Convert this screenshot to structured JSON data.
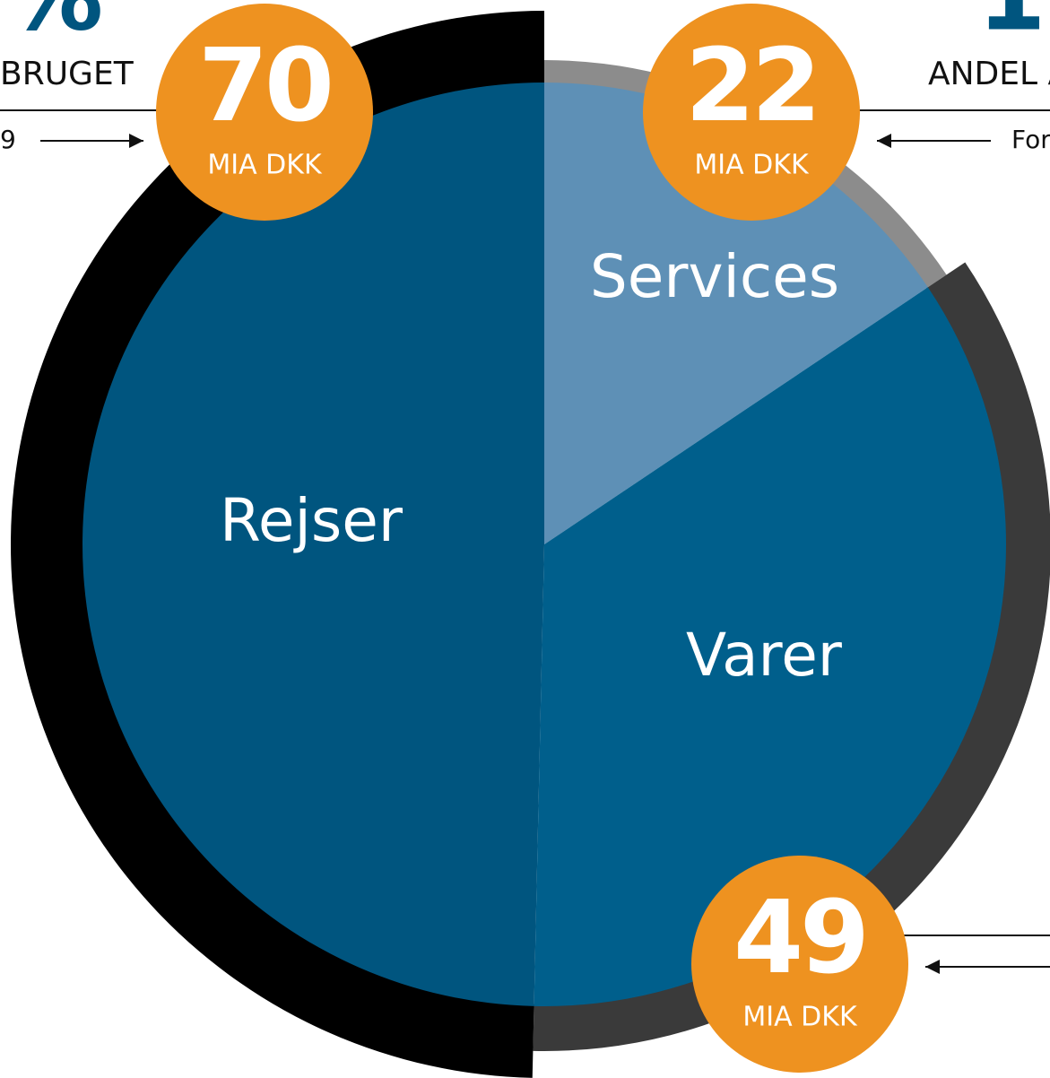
{
  "chart_data": {
    "type": "pie",
    "categories": [
      "Services",
      "Varer",
      "Rejser"
    ],
    "values": [
      22,
      49,
      70
    ],
    "colors": [
      "#5e90b6",
      "#005f8c",
      "#00557f"
    ],
    "ring_colors": [
      "#8c8c8c",
      "#3a3a3a",
      "#000000"
    ],
    "unit": "MIA DKK",
    "badge_color": "#ee9220",
    "fragments": {
      "top_left": "%",
      "top_right": "1",
      "left_title": "BRUGET",
      "right_title": "ANDEL A",
      "left_note": "9",
      "right_note": "For"
    }
  }
}
